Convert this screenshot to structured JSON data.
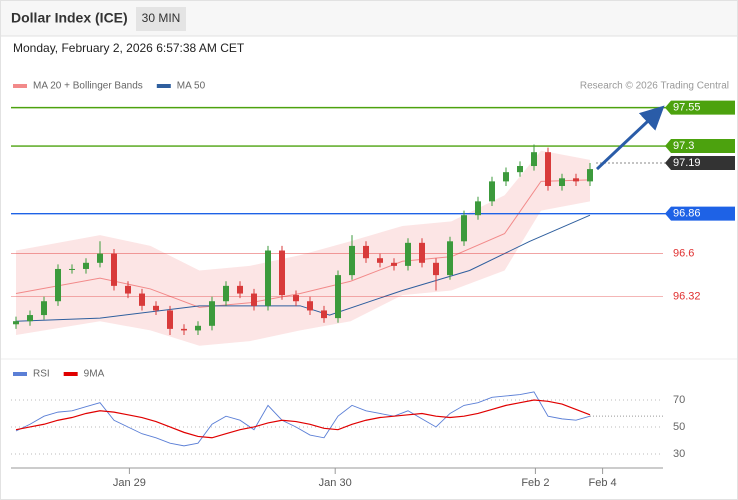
{
  "header": {
    "title": "Dollar Index (ICE)",
    "timeframe": "30 MIN",
    "timestamp": "Monday, February 2, 2026 6:57:38 AM CET"
  },
  "chart_data": [
    {
      "type": "candlestick",
      "credit": "Research © 2026 Trading Central",
      "up_color": "#3c9a3c",
      "down_color": "#d83a3a",
      "open": [
        96.14,
        96.16,
        96.2,
        96.29,
        96.5,
        96.5,
        96.54,
        96.6,
        96.39,
        96.34,
        96.26,
        96.23,
        96.11,
        96.1,
        96.13,
        96.29,
        96.39,
        96.34,
        96.26,
        96.62,
        96.33,
        96.29,
        96.23,
        96.18,
        96.46,
        96.65,
        96.57,
        96.54,
        96.52,
        96.67,
        96.54,
        96.46,
        96.68,
        96.85,
        96.94,
        97.07,
        97.13,
        97.17,
        97.26,
        97.04,
        97.09,
        97.07
      ],
      "high": [
        96.19,
        96.23,
        96.32,
        96.53,
        96.53,
        96.57,
        96.68,
        96.63,
        96.42,
        96.37,
        96.29,
        96.26,
        96.14,
        96.16,
        96.32,
        96.42,
        96.42,
        96.37,
        96.65,
        96.65,
        96.36,
        96.32,
        96.26,
        96.49,
        96.72,
        96.68,
        96.6,
        96.57,
        96.7,
        96.7,
        96.57,
        96.71,
        96.88,
        96.97,
        97.1,
        97.16,
        97.2,
        97.31,
        97.29,
        97.12,
        97.12,
        97.19
      ],
      "low": [
        96.11,
        96.13,
        96.17,
        96.26,
        96.47,
        96.47,
        96.51,
        96.36,
        96.31,
        96.23,
        96.2,
        96.07,
        96.07,
        96.07,
        96.1,
        96.26,
        96.31,
        96.23,
        96.23,
        96.3,
        96.26,
        96.2,
        96.15,
        96.15,
        96.43,
        96.54,
        96.51,
        96.49,
        96.49,
        96.51,
        96.36,
        96.43,
        96.65,
        96.82,
        96.91,
        97.04,
        97.1,
        97.14,
        97.01,
        97.01,
        97.04,
        97.04
      ],
      "close": [
        96.16,
        96.2,
        96.29,
        96.5,
        96.5,
        96.54,
        96.6,
        96.39,
        96.34,
        96.26,
        96.23,
        96.11,
        96.1,
        96.13,
        96.29,
        96.39,
        96.34,
        96.26,
        96.62,
        96.33,
        96.29,
        96.23,
        96.18,
        96.46,
        96.65,
        96.57,
        96.54,
        96.52,
        96.67,
        96.54,
        96.46,
        96.68,
        96.85,
        96.94,
        97.07,
        97.13,
        97.17,
        97.26,
        97.04,
        97.09,
        97.07,
        97.15
      ],
      "series": [
        {
          "name": "MA 20 + Bollinger Bands",
          "color": "#f28a8a",
          "x": [
            0,
            6,
            9.6,
            13.1,
            16.7,
            20.3,
            23.9,
            27.6,
            31.1,
            34.9,
            37.5,
            41
          ],
          "values": [
            96.34,
            96.44,
            96.37,
            96.25,
            96.28,
            96.34,
            96.42,
            96.55,
            96.58,
            96.73,
            97.07,
            97.08
          ],
          "upper": [
            96.62,
            96.72,
            96.65,
            96.49,
            96.52,
            96.59,
            96.68,
            96.78,
            96.81,
            96.98,
            97.27,
            97.21
          ],
          "lower": [
            96.07,
            96.16,
            96.1,
            96.0,
            96.03,
            96.1,
            96.16,
            96.33,
            96.36,
            96.49,
            96.88,
            96.94
          ]
        },
        {
          "name": "MA 50",
          "color": "#2f5f9e",
          "x": [
            0,
            6,
            13.1,
            20.3,
            22.4,
            27.6,
            32.4,
            36.7,
            41
          ],
          "values": [
            96.16,
            96.18,
            96.26,
            96.26,
            96.2,
            96.36,
            96.49,
            96.68,
            96.85
          ]
        }
      ],
      "levels": [
        {
          "value": 97.55,
          "color": "#4ca20e",
          "style": "solid",
          "boxed": true
        },
        {
          "value": 97.3,
          "color": "#4ca20e",
          "style": "solid",
          "boxed": true
        },
        {
          "value": 97.19,
          "color": "#333333",
          "style": "dotted",
          "boxed": true
        },
        {
          "value": 96.86,
          "color": "#1e62e6",
          "style": "solid",
          "boxed": true
        },
        {
          "value": 96.6,
          "color": "#e03030",
          "style": "solid",
          "boxed": false
        },
        {
          "value": 96.32,
          "color": "#e03030",
          "style": "solid",
          "boxed": false
        }
      ],
      "xlim": [
        -0.5,
        46.5
      ],
      "ylim": [
        95.94,
        97.86
      ]
    },
    {
      "type": "line",
      "series": [
        {
          "name": "RSI",
          "color": "#5b7fd6",
          "values": [
            47,
            52,
            58,
            61,
            62,
            65,
            68,
            55,
            50,
            45,
            42,
            38,
            36,
            38,
            52,
            58,
            55,
            48,
            66,
            55,
            50,
            44,
            42,
            58,
            66,
            62,
            60,
            58,
            62,
            56,
            50,
            60,
            66,
            68,
            72,
            73,
            74,
            76,
            58,
            56,
            55,
            58
          ]
        },
        {
          "name": "9MA",
          "color": "#e00000",
          "values": [
            48,
            50,
            52,
            55,
            57,
            60,
            62,
            61,
            59,
            57,
            54,
            50,
            46,
            43,
            42,
            45,
            48,
            50,
            53,
            55,
            54,
            52,
            49,
            48,
            52,
            55,
            57,
            58,
            59,
            60,
            58,
            57,
            58,
            60,
            63,
            66,
            68,
            70,
            69,
            67,
            63,
            59
          ]
        }
      ],
      "xlim": [
        -0.5,
        46.5
      ],
      "ylim": [
        19.6,
        81.1
      ],
      "yticks": [
        70,
        50,
        30
      ],
      "grid": true,
      "xticks": [
        {
          "value": 8.1,
          "label": "Jan 29"
        },
        {
          "value": 22.8,
          "label": "Jan 30"
        },
        {
          "value": 37.1,
          "label": "Feb 2"
        },
        {
          "value": 41.9,
          "label": "Feb 4"
        }
      ]
    }
  ]
}
